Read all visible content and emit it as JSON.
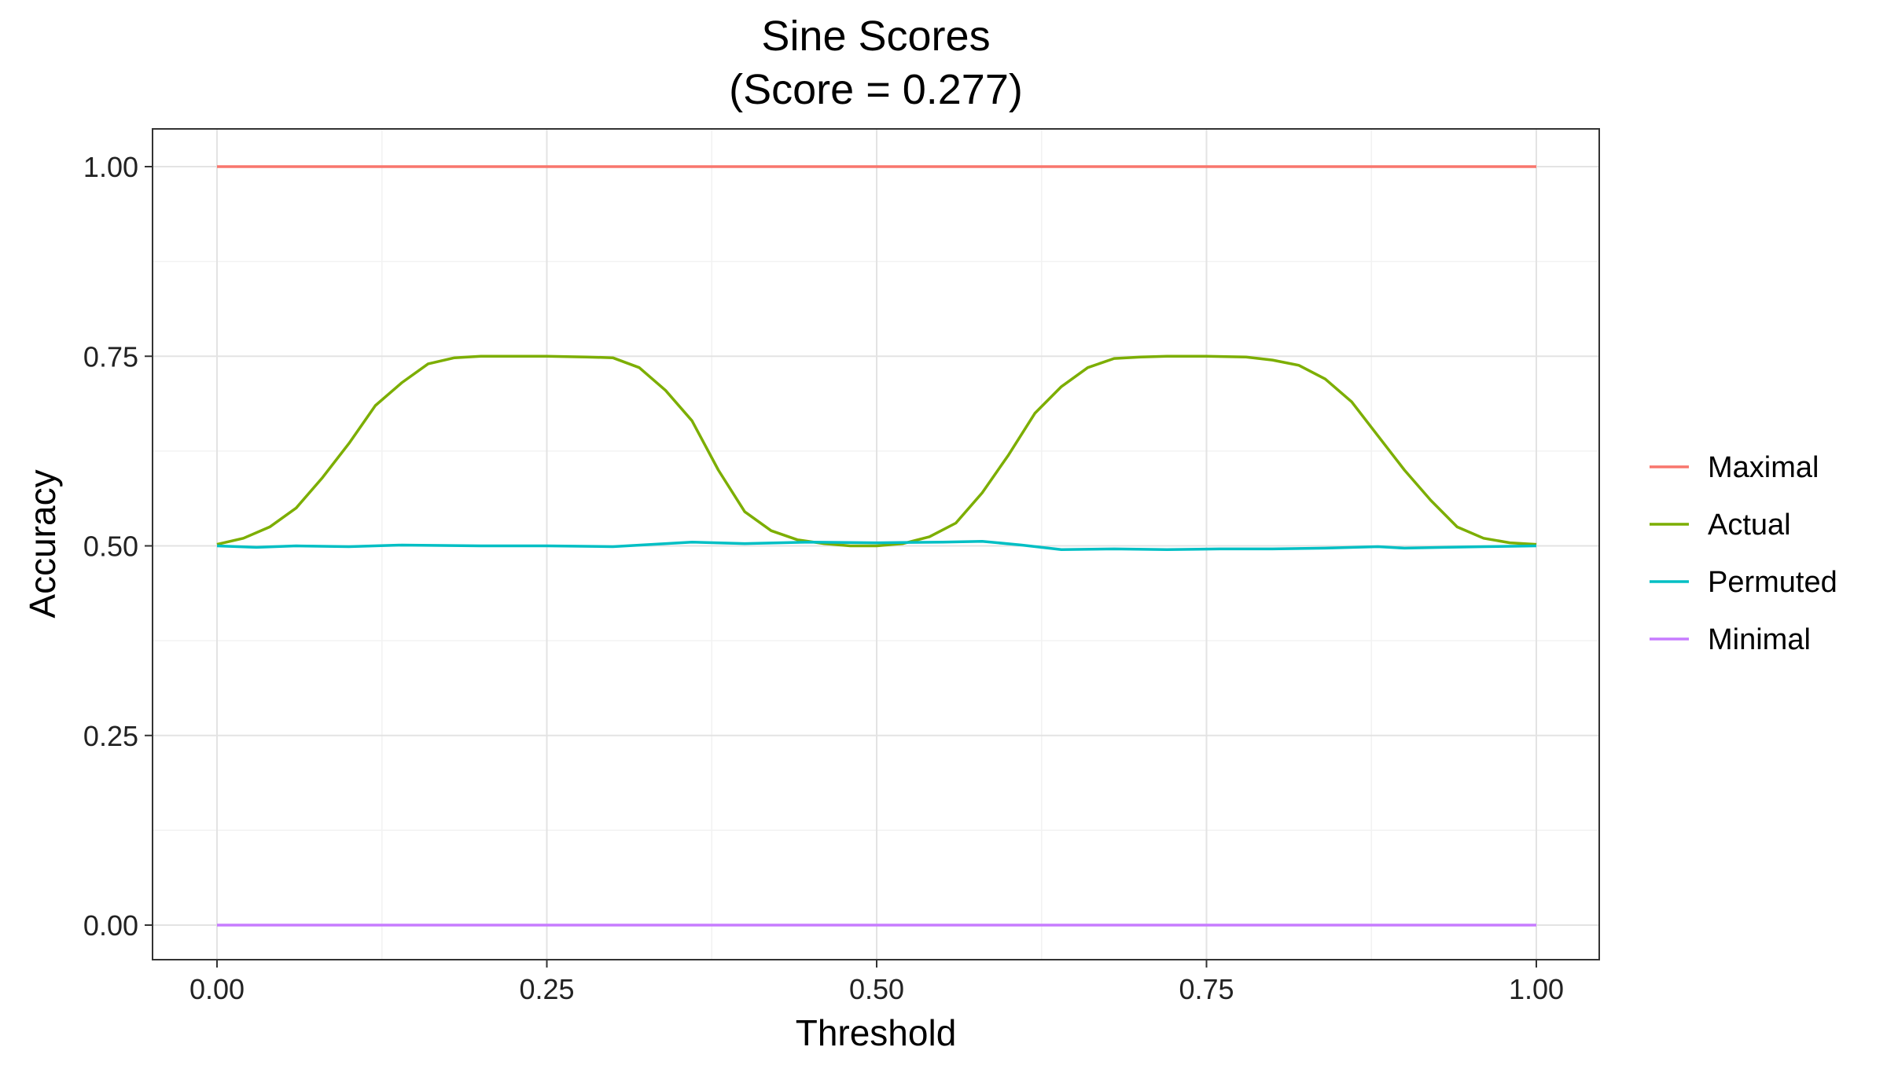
{
  "chart_data": {
    "type": "line",
    "title_line1": "Sine Scores",
    "title_line2": "(Score = 0.277)",
    "xlabel": "Threshold",
    "ylabel": "Accuracy",
    "xlim": [
      0,
      1
    ],
    "ylim": [
      0,
      1
    ],
    "x_ticks": [
      0,
      0.25,
      0.5,
      0.75,
      1
    ],
    "x_tick_labels": [
      "0.00",
      "0.25",
      "0.50",
      "0.75",
      "1.00"
    ],
    "y_ticks": [
      0,
      0.25,
      0.5,
      0.75,
      1
    ],
    "y_tick_labels": [
      "0.00",
      "0.25",
      "0.50",
      "0.75",
      "1.00"
    ],
    "grid": true,
    "legend_position": "right",
    "series": [
      {
        "name": "Maximal",
        "color": "#F8766D",
        "x": [
          0,
          1
        ],
        "y": [
          1.0,
          1.0
        ]
      },
      {
        "name": "Actual",
        "color": "#7CAE00",
        "x": [
          0,
          0.02,
          0.04,
          0.06,
          0.08,
          0.1,
          0.12,
          0.14,
          0.16,
          0.18,
          0.2,
          0.22,
          0.25,
          0.28,
          0.3,
          0.32,
          0.34,
          0.36,
          0.38,
          0.4,
          0.42,
          0.44,
          0.46,
          0.48,
          0.5,
          0.52,
          0.54,
          0.56,
          0.58,
          0.6,
          0.62,
          0.64,
          0.66,
          0.68,
          0.7,
          0.72,
          0.75,
          0.78,
          0.8,
          0.82,
          0.84,
          0.86,
          0.88,
          0.9,
          0.92,
          0.94,
          0.96,
          0.98,
          1.0
        ],
        "y": [
          0.502,
          0.51,
          0.525,
          0.55,
          0.59,
          0.635,
          0.685,
          0.715,
          0.74,
          0.748,
          0.75,
          0.75,
          0.75,
          0.749,
          0.748,
          0.735,
          0.705,
          0.665,
          0.6,
          0.545,
          0.52,
          0.508,
          0.503,
          0.5,
          0.5,
          0.503,
          0.512,
          0.53,
          0.57,
          0.62,
          0.675,
          0.71,
          0.735,
          0.747,
          0.749,
          0.75,
          0.75,
          0.749,
          0.745,
          0.738,
          0.72,
          0.69,
          0.645,
          0.6,
          0.56,
          0.525,
          0.51,
          0.504,
          0.502
        ]
      },
      {
        "name": "Permuted",
        "color": "#00BFC4",
        "x": [
          0,
          0.03,
          0.06,
          0.1,
          0.14,
          0.2,
          0.25,
          0.3,
          0.33,
          0.36,
          0.4,
          0.45,
          0.5,
          0.55,
          0.58,
          0.61,
          0.64,
          0.68,
          0.72,
          0.76,
          0.8,
          0.84,
          0.88,
          0.9,
          0.93,
          0.96,
          1.0
        ],
        "y": [
          0.5,
          0.498,
          0.5,
          0.499,
          0.501,
          0.5,
          0.5,
          0.499,
          0.502,
          0.505,
          0.503,
          0.505,
          0.504,
          0.505,
          0.506,
          0.501,
          0.495,
          0.496,
          0.495,
          0.496,
          0.496,
          0.497,
          0.499,
          0.497,
          0.498,
          0.499,
          0.5
        ]
      },
      {
        "name": "Minimal",
        "color": "#C77CFF",
        "x": [
          0,
          1
        ],
        "y": [
          0.0,
          0.0
        ]
      }
    ]
  }
}
